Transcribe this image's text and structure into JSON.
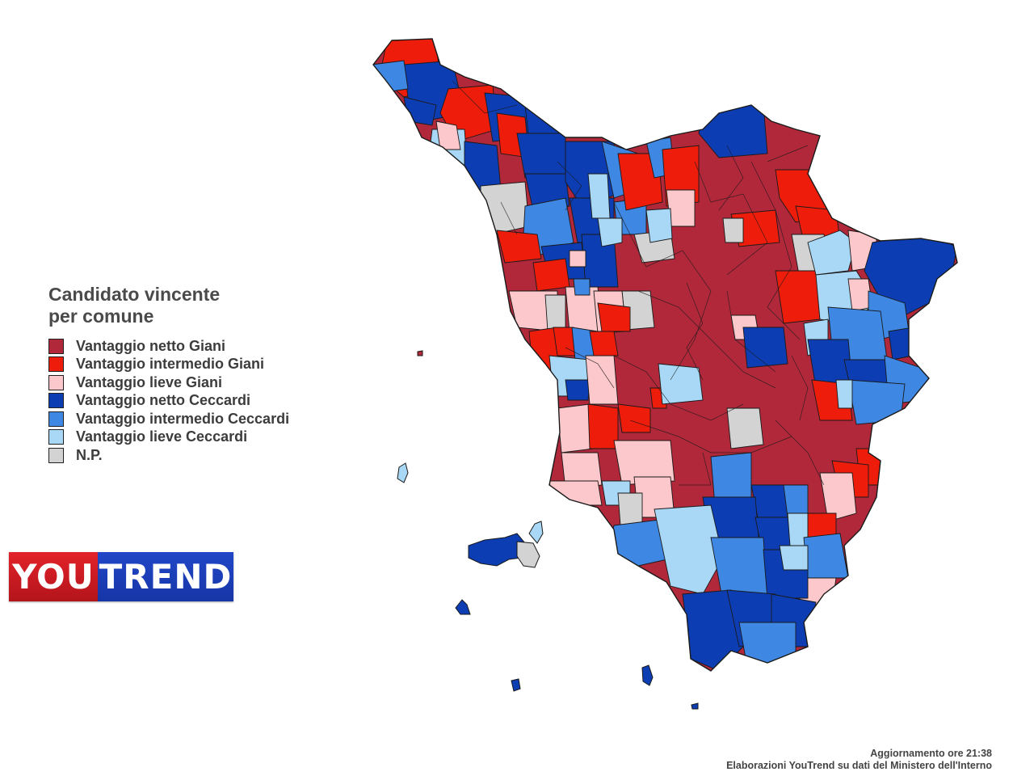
{
  "legend": {
    "title_line1": "Candidato vincente",
    "title_line2": "per comune",
    "items": [
      {
        "label": "Vantaggio netto Giani",
        "color": "#b0283a"
      },
      {
        "label": "Vantaggio intermedio Giani",
        "color": "#ee1c0a"
      },
      {
        "label": "Vantaggio lieve Giani",
        "color": "#fdc8cc"
      },
      {
        "label": "Vantaggio netto Ceccardi",
        "color": "#0c3db3"
      },
      {
        "label": "Vantaggio intermedio Ceccardi",
        "color": "#3e87e3"
      },
      {
        "label": "Vantaggio lieve Ceccardi",
        "color": "#a8d8f5"
      },
      {
        "label": "N.P.",
        "color": "#d3d3d3"
      }
    ]
  },
  "logo": {
    "part1": "YOU",
    "part2": "TREND"
  },
  "footer": {
    "update": "Aggiornamento ore 21:38",
    "source": "Elaborazioni YouTrend su dati del Ministero dell'Interno"
  }
}
